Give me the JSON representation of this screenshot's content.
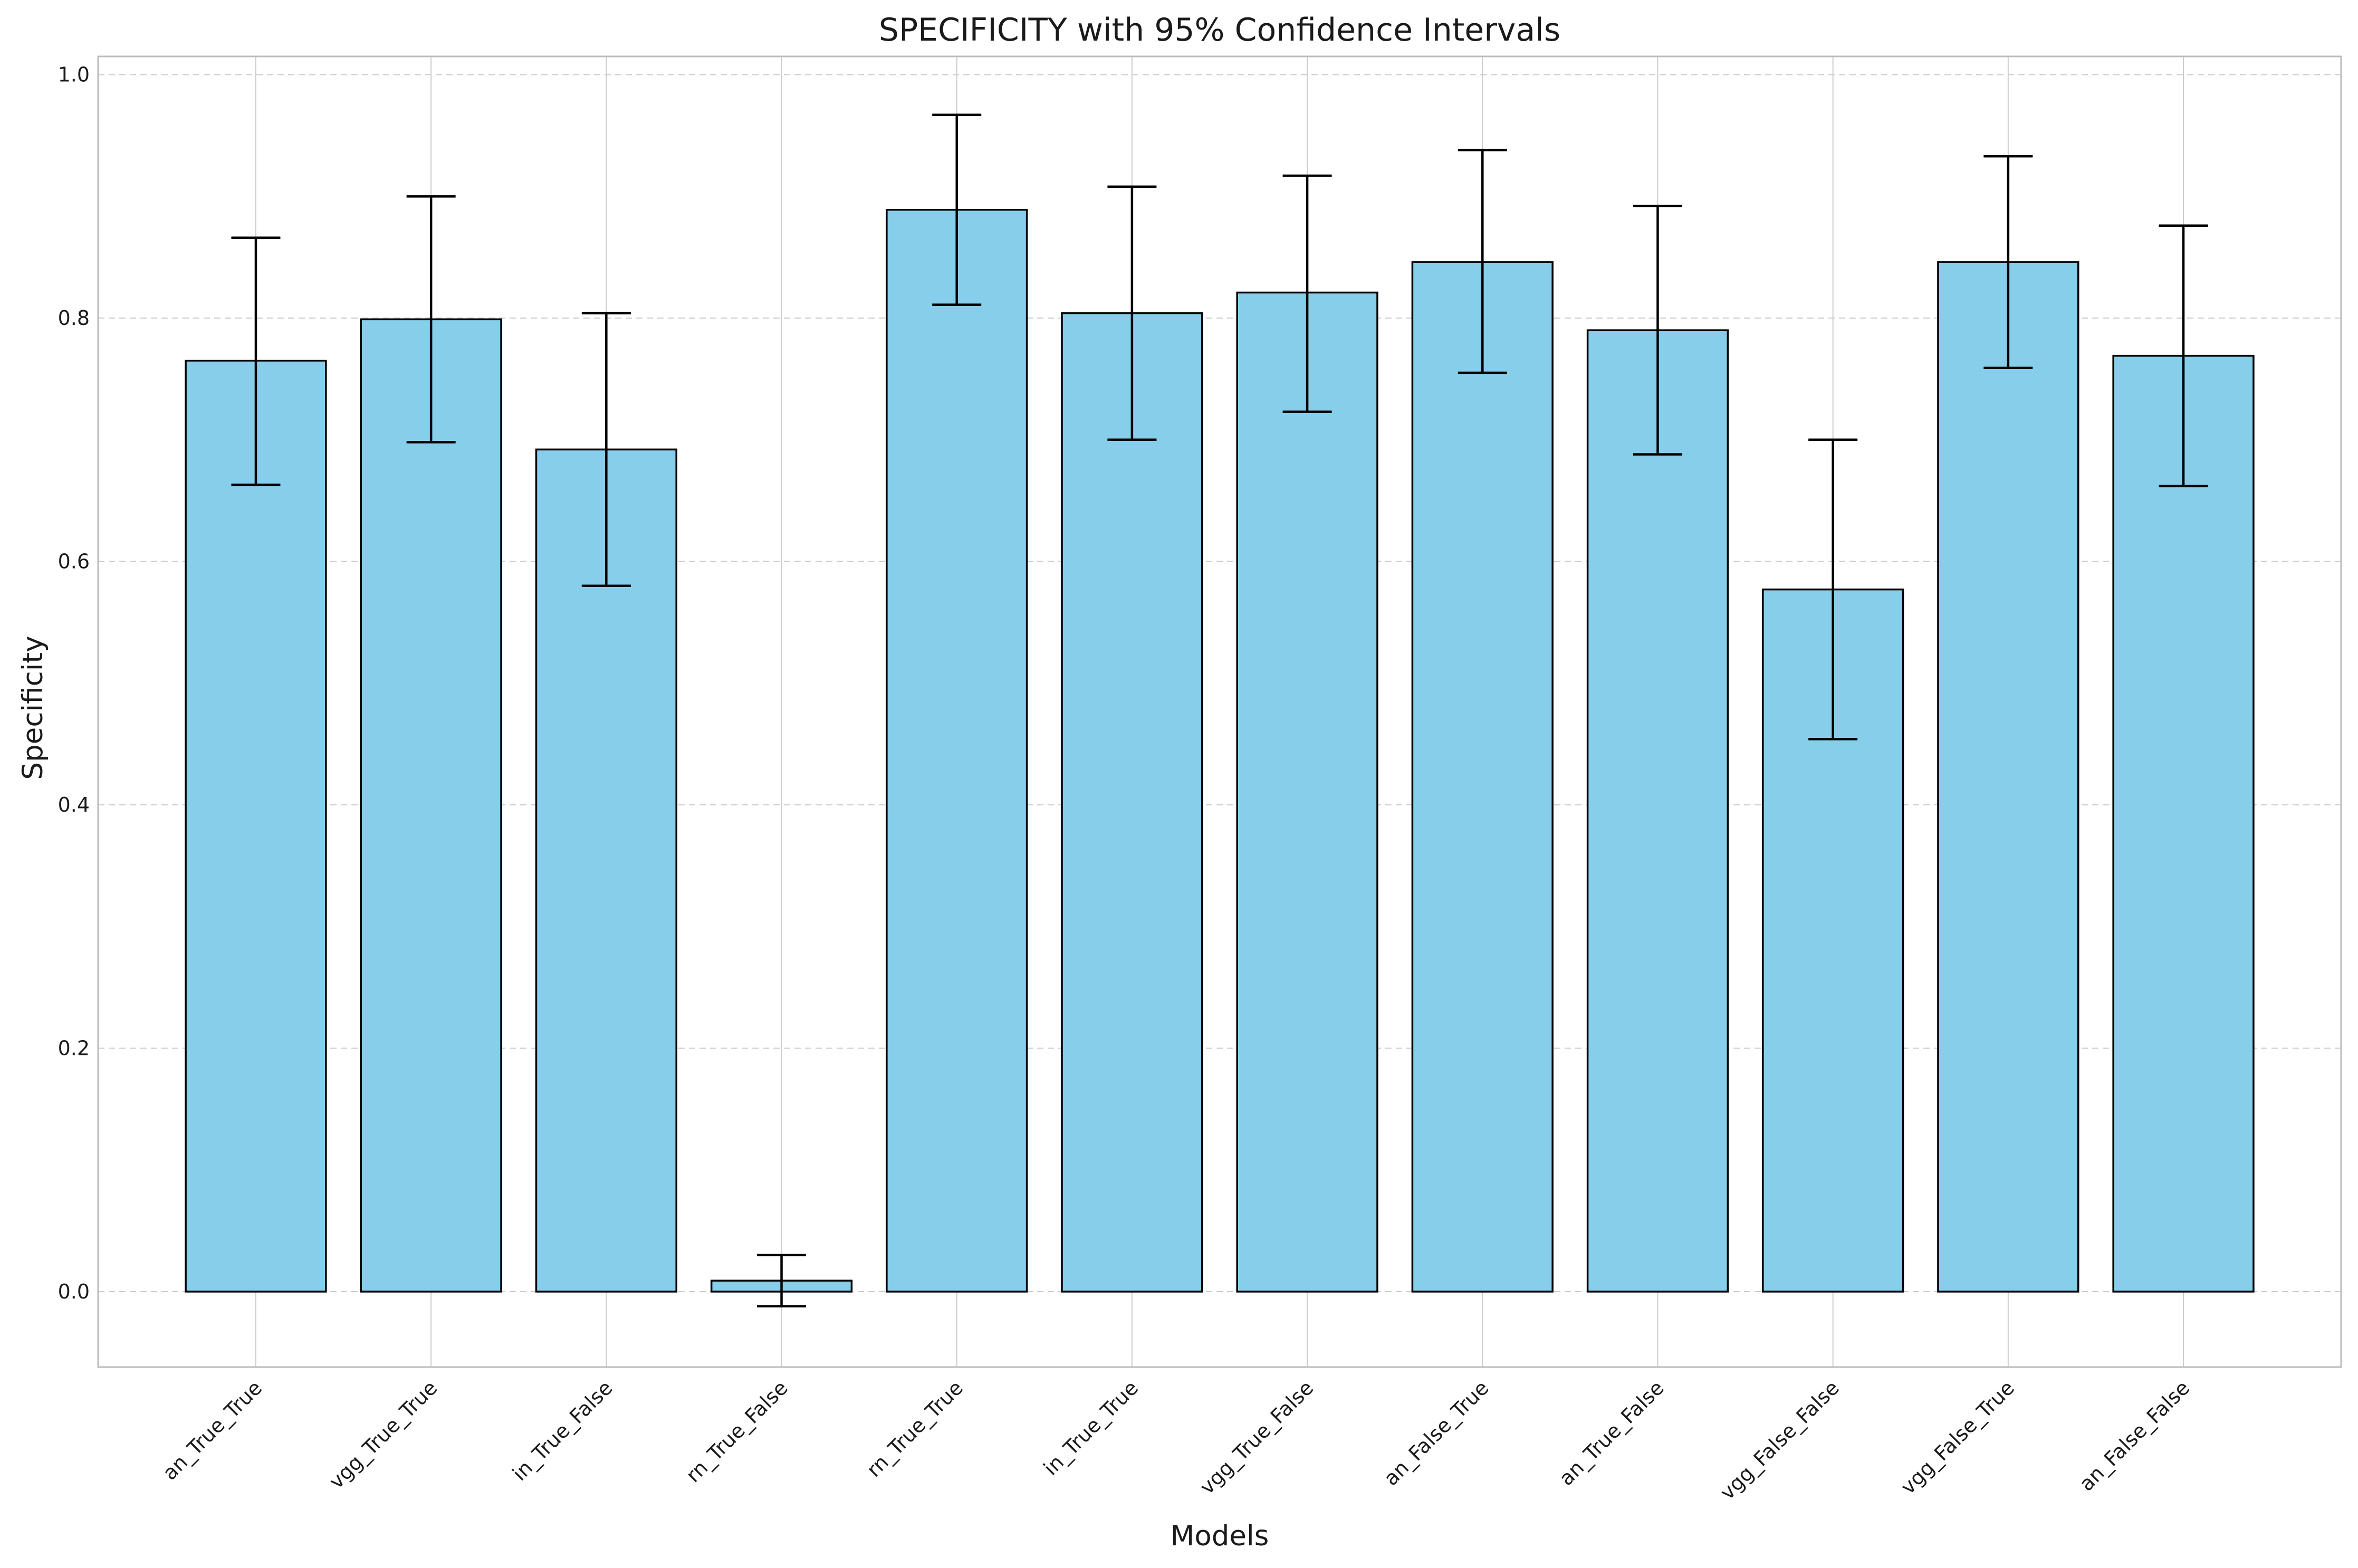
{
  "chart_data": {
    "type": "bar",
    "title": "SPECIFICITY with 95% Confidence Intervals",
    "xlabel": "Models",
    "ylabel": "Specificity",
    "ylim": [
      -0.062,
      1.015
    ],
    "yticks": [
      0.0,
      0.2,
      0.4,
      0.6,
      0.8,
      1.0
    ],
    "ytick_labels": [
      "0.0",
      "0.2",
      "0.4",
      "0.6",
      "0.8",
      "1.0"
    ],
    "grid": true,
    "categories": [
      "an_True_True",
      "vgg_True_True",
      "in_True_False",
      "rn_True_False",
      "rn_True_True",
      "in_True_True",
      "vgg_True_False",
      "an_False_True",
      "an_True_False",
      "vgg_False_False",
      "vgg_False_True",
      "an_False_False"
    ],
    "values": [
      0.765,
      0.799,
      0.692,
      0.009,
      0.889,
      0.804,
      0.821,
      0.846,
      0.79,
      0.577,
      0.846,
      0.769
    ],
    "ci_lower": [
      0.663,
      0.698,
      0.58,
      -0.012,
      0.811,
      0.7,
      0.723,
      0.755,
      0.688,
      0.454,
      0.759,
      0.662
    ],
    "ci_upper": [
      0.866,
      0.9,
      0.804,
      0.03,
      0.967,
      0.908,
      0.917,
      0.938,
      0.892,
      0.7,
      0.933,
      0.876
    ],
    "colors": {
      "bar_fill": "#87ceeb",
      "bar_edge": "#000000",
      "error_bar": "#000000",
      "grid": "#cccccc",
      "frame": "#bbbbbb",
      "text": "#1a1a1a"
    }
  }
}
